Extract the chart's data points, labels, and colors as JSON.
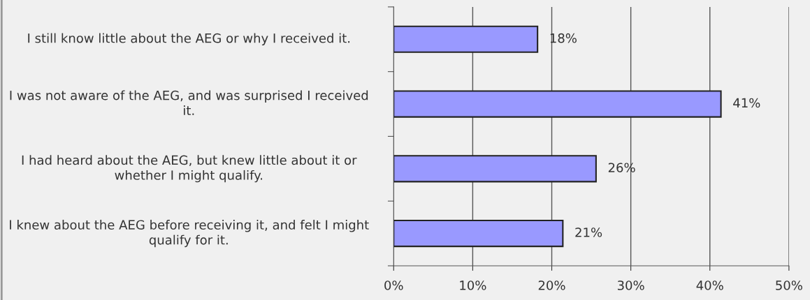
{
  "chart_data": {
    "type": "bar",
    "orientation": "horizontal",
    "categories": [
      "I still know little about the AEG or why I received it.",
      "I was not aware of the AEG, and was surprised I received it.",
      "I had heard about the AEG, but knew little about it or whether I might qualify.",
      "I knew about the AEG before receiving it, and felt I might qualify for it."
    ],
    "values": [
      18.2,
      41.4,
      25.6,
      21.4
    ],
    "value_labels": [
      "18%",
      "41%",
      "26%",
      "21%"
    ],
    "color": "#9999ff",
    "xlim": [
      0,
      50
    ],
    "xticks": [
      {
        "value": 0,
        "label": "0%"
      },
      {
        "value": 10,
        "label": "10%"
      },
      {
        "value": 20,
        "label": "20%"
      },
      {
        "value": 30,
        "label": "30%"
      },
      {
        "value": 40,
        "label": "40%"
      },
      {
        "value": 50,
        "label": "50%"
      }
    ],
    "grid": "x",
    "legend": false
  }
}
